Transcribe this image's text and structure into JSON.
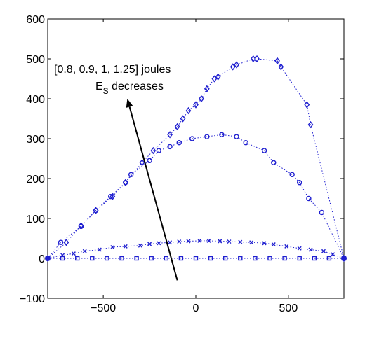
{
  "chart_data": {
    "type": "line",
    "title": "",
    "xlabel": "",
    "ylabel": "",
    "xlim": [
      -800,
      800
    ],
    "ylim": [
      -100,
      600
    ],
    "grid": false,
    "legend": "none",
    "x_ticks": [
      -500,
      0,
      500
    ],
    "x_tick_labels": [
      "−500",
      "0",
      "500"
    ],
    "y_ticks": [
      -100,
      0,
      100,
      200,
      300,
      400,
      500,
      600
    ],
    "y_tick_labels": [
      "−100",
      "0",
      "100",
      "200",
      "300",
      "400",
      "500",
      "600"
    ],
    "line_color": "#1f1fd0",
    "series": [
      {
        "marker": "diamond",
        "x": [
          -800,
          -700,
          -620,
          -540,
          -450,
          -380,
          -290,
          -230,
          -140,
          -100,
          -70,
          -40,
          0,
          30,
          60,
          100,
          120,
          200,
          220,
          310,
          330,
          440,
          460,
          600,
          620,
          800
        ],
        "y": [
          0,
          40,
          82,
          120,
          155,
          190,
          240,
          270,
          310,
          330,
          350,
          370,
          385,
          400,
          425,
          450,
          455,
          480,
          485,
          500,
          500,
          495,
          480,
          385,
          335,
          0
        ]
      },
      {
        "marker": "circle",
        "x": [
          -800,
          -730,
          -620,
          -540,
          -460,
          -380,
          -350,
          -250,
          -200,
          -140,
          -90,
          -20,
          60,
          140,
          220,
          270,
          370,
          420,
          520,
          560,
          610,
          680,
          800
        ],
        "y": [
          0,
          40,
          80,
          120,
          155,
          190,
          210,
          245,
          270,
          280,
          290,
          300,
          305,
          310,
          305,
          290,
          270,
          240,
          210,
          190,
          150,
          115,
          0
        ]
      },
      {
        "marker": "x",
        "x": [
          -800,
          -720,
          -660,
          -600,
          -520,
          -450,
          -380,
          -300,
          -250,
          -200,
          -140,
          -90,
          -40,
          20,
          70,
          130,
          180,
          240,
          300,
          370,
          420,
          490,
          560,
          620,
          690,
          740,
          800
        ],
        "y": [
          0,
          8,
          12,
          18,
          22,
          28,
          30,
          32,
          36,
          38,
          40,
          42,
          43,
          44,
          44,
          43,
          42,
          41,
          40,
          38,
          35,
          30,
          25,
          22,
          18,
          10,
          0
        ]
      },
      {
        "marker": "square",
        "x": [
          -800,
          -720,
          -640,
          -560,
          -480,
          -400,
          -320,
          -240,
          -160,
          -80,
          0,
          80,
          160,
          240,
          320,
          400,
          480,
          560,
          640,
          720,
          800
        ],
        "y": [
          0,
          0,
          0,
          0,
          0,
          0,
          0,
          0,
          0,
          0,
          0,
          0,
          0,
          0,
          0,
          0,
          0,
          0,
          0,
          0,
          0
        ]
      }
    ],
    "annotations": {
      "line1": "[0.8, 0.9, 1, 1.25] joules",
      "line2_main": "E",
      "line2_sub": "S",
      "line2_rest": " decreases"
    },
    "arrow": {
      "from": [
        -100,
        -55
      ],
      "to": [
        -370,
        400
      ]
    }
  }
}
